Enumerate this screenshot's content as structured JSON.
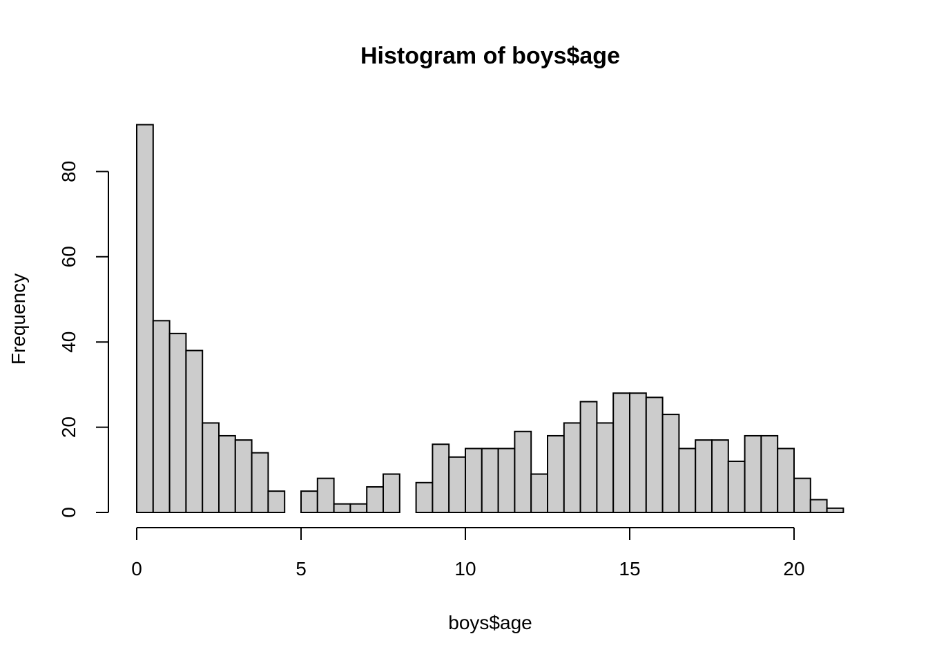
{
  "chart_data": {
    "type": "bar",
    "title": "Histogram of boys$age",
    "xlabel": "boys$age",
    "ylabel": "Frequency",
    "bin_width": 0.5,
    "bin_starts": [
      0,
      0.5,
      1,
      1.5,
      2,
      2.5,
      3,
      3.5,
      4,
      4.5,
      5,
      5.5,
      6,
      6.5,
      7,
      7.5,
      8,
      8.5,
      9,
      9.5,
      10,
      10.5,
      11,
      11.5,
      12,
      12.5,
      13,
      13.5,
      14,
      14.5,
      15,
      15.5,
      16,
      16.5,
      17,
      17.5,
      18,
      18.5,
      19,
      19.5,
      20,
      20.5,
      21
    ],
    "values": [
      91,
      45,
      42,
      38,
      21,
      18,
      17,
      14,
      5,
      0,
      5,
      8,
      2,
      2,
      6,
      9,
      0,
      7,
      16,
      13,
      15,
      15,
      15,
      19,
      9,
      18,
      21,
      26,
      21,
      28,
      28,
      27,
      23,
      15,
      17,
      17,
      12,
      18,
      18,
      15,
      8,
      3,
      1
    ],
    "xlim": [
      0,
      21.5
    ],
    "ylim": [
      0,
      91
    ],
    "x_ticks": [
      0,
      5,
      10,
      15,
      20
    ],
    "x_tick_labels": [
      "0",
      "5",
      "10",
      "15",
      "20"
    ],
    "y_ticks": [
      0,
      20,
      40,
      60,
      80
    ],
    "y_tick_labels": [
      "0",
      "20",
      "40",
      "60",
      "80"
    ],
    "bar_fill": "#cccccc",
    "bar_stroke": "#000000",
    "grid": false,
    "legend": "none"
  }
}
